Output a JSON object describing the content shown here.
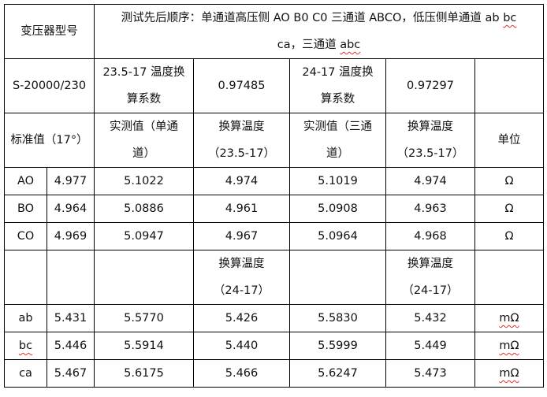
{
  "header": {
    "model_label": "变压器型号",
    "test_order_line1": "测试先后顺序：单通道高压侧 AO B0 C0  三通道 ABCO，低压侧单通道 ab ",
    "test_order_bc": "bc",
    "test_order_line2": "ca，三通道 ",
    "test_order_abc": "abc"
  },
  "row2": {
    "model": "S-20000/230",
    "coef1_label_a": "23.5-17 温度换",
    "coef1_label_b": "算系数",
    "coef1_value": "0.97485",
    "coef2_label_a": "24-17 温度换",
    "coef2_label_b": "算系数",
    "coef2_value": "0.97297"
  },
  "row3": {
    "standard": "标准值（17°）",
    "measured_single_a": "实测值（单通",
    "measured_single_b": "道）",
    "converted1_a": "换算温度",
    "converted1_b": "（23.5-17）",
    "measured_three_a": "实测值（三通",
    "measured_three_b": "道）",
    "converted2_a": "换算温度",
    "converted2_b": "（23.5-17）",
    "unit": "单位"
  },
  "high_rows": [
    [
      "AO",
      "4.977",
      "5.1022",
      "4.974",
      "5.1019",
      "4.974",
      "Ω"
    ],
    [
      "BO",
      "4.964",
      "5.0886",
      "4.961",
      "5.0908",
      "4.963",
      "Ω"
    ],
    [
      "CO",
      "4.969",
      "5.0947",
      "4.967",
      "5.0964",
      "4.968",
      "Ω"
    ]
  ],
  "mid_row": {
    "converted1_a": "换算温度",
    "converted1_b": "（24-17）",
    "converted2_a": "换算温度",
    "converted2_b": "（24-17）"
  },
  "low_rows": [
    [
      "ab",
      "5.431",
      "5.5770",
      "5.426",
      "5.5830",
      "5.432",
      "mΩ"
    ],
    [
      "bc",
      "5.446",
      "5.5914",
      "5.440",
      "5.5999",
      "5.449",
      "mΩ"
    ],
    [
      "ca",
      "5.467",
      "5.6175",
      "5.466",
      "5.6247",
      "5.473",
      "mΩ"
    ]
  ]
}
